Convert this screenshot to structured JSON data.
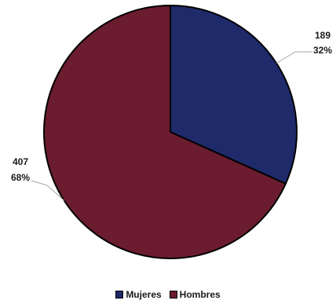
{
  "chart_data": {
    "type": "pie",
    "series": [
      {
        "name": "",
        "slices": [
          {
            "label": "Mujeres",
            "value": 189,
            "percent_label": "32%",
            "color": "#1f2a6b"
          },
          {
            "label": "Hombres",
            "value": 407,
            "percent_label": "68%",
            "color": "#6b1c2e"
          }
        ]
      }
    ],
    "start_angle": "12 o'clock",
    "direction": "clockwise",
    "legend_position": "bottom",
    "slice_outline_color": "#000000",
    "leader_line_color": "#a6a6a6"
  },
  "legend": {
    "items": [
      {
        "label": "Mujeres",
        "color": "#1f2a6b"
      },
      {
        "label": "Hombres",
        "color": "#6b1c2e"
      }
    ]
  }
}
